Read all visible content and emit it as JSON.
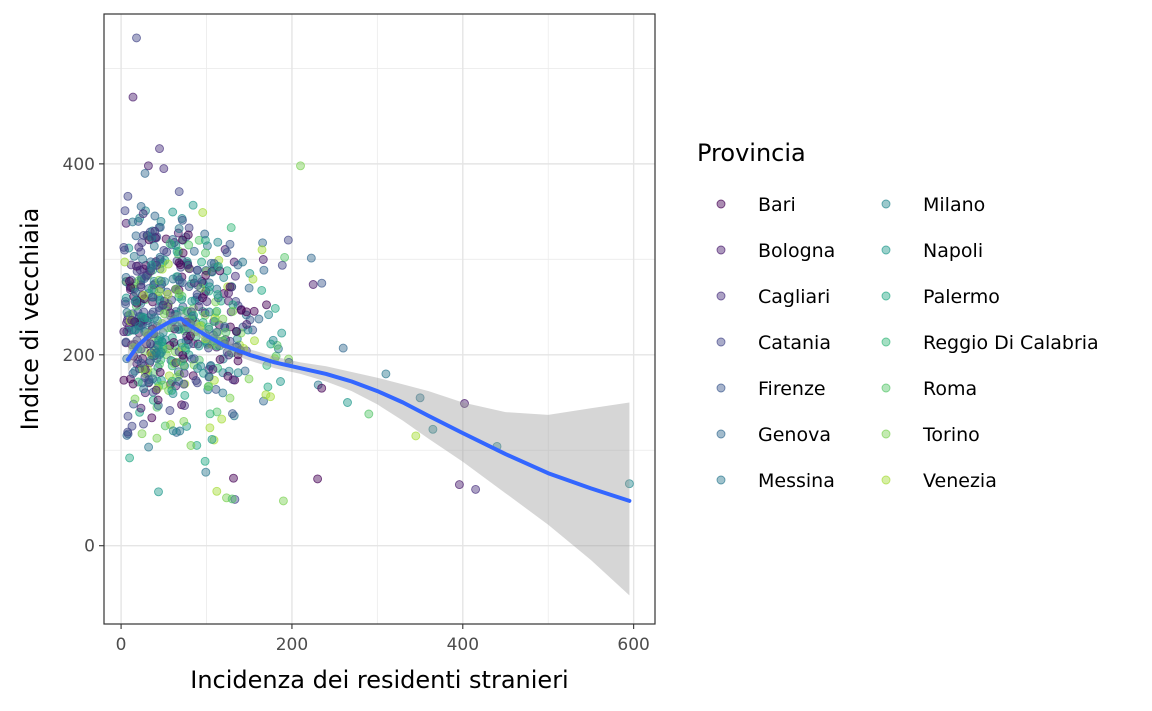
{
  "chart_data": {
    "type": "scatter",
    "xlabel": "Incidenza dei residenti stranieri",
    "ylabel": "Indice di vecchiaia",
    "xlim": [
      -20,
      625
    ],
    "ylim": [
      -82,
      557
    ],
    "x_ticks": [
      0,
      200,
      400,
      600
    ],
    "y_ticks": [
      0,
      200,
      400
    ],
    "grid": true,
    "legend": {
      "title": "Provincia",
      "placement": "right",
      "columns": 2,
      "entries": [
        {
          "name": "Bari",
          "color": "#440154"
        },
        {
          "name": "Bologna",
          "color": "#481A6C"
        },
        {
          "name": "Cagliari",
          "color": "#472F7D"
        },
        {
          "name": "Catania",
          "color": "#414487"
        },
        {
          "name": "Firenze",
          "color": "#39568C"
        },
        {
          "name": "Genova",
          "color": "#31688E"
        },
        {
          "name": "Messina",
          "color": "#2A788E"
        },
        {
          "name": "Milano",
          "color": "#23888E"
        },
        {
          "name": "Napoli",
          "color": "#1F988B"
        },
        {
          "name": "Palermo",
          "color": "#22A884"
        },
        {
          "name": "Reggio Di Calabria",
          "color": "#35B779"
        },
        {
          "name": "Roma",
          "color": "#54C568"
        },
        {
          "name": "Torino",
          "color": "#7AD151"
        },
        {
          "name": "Venezia",
          "color": "#A5DB36"
        }
      ]
    },
    "point_style": {
      "alpha": 0.45,
      "radius": 4
    },
    "highlighted_points": [
      {
        "x": 18,
        "y": 532,
        "series": "Catania"
      },
      {
        "x": 14,
        "y": 470,
        "series": "Bologna"
      },
      {
        "x": 45,
        "y": 416,
        "series": "Cagliari"
      },
      {
        "x": 32,
        "y": 398,
        "series": "Bologna"
      },
      {
        "x": 50,
        "y": 395,
        "series": "Cagliari"
      },
      {
        "x": 28,
        "y": 390,
        "series": "Genova"
      },
      {
        "x": 68,
        "y": 371,
        "series": "Catania"
      },
      {
        "x": 8,
        "y": 366,
        "series": "Catania"
      },
      {
        "x": 210,
        "y": 398,
        "series": "Torino"
      },
      {
        "x": 165,
        "y": 310,
        "series": "Venezia"
      },
      {
        "x": 235,
        "y": 275,
        "series": "Firenze"
      },
      {
        "x": 260,
        "y": 207,
        "series": "Genova"
      },
      {
        "x": 310,
        "y": 180,
        "series": "Messina"
      },
      {
        "x": 350,
        "y": 155,
        "series": "Messina"
      },
      {
        "x": 365,
        "y": 122,
        "series": "Milano"
      },
      {
        "x": 345,
        "y": 115,
        "series": "Venezia"
      },
      {
        "x": 402,
        "y": 149,
        "series": "Bologna"
      },
      {
        "x": 396,
        "y": 64,
        "series": "Bologna"
      },
      {
        "x": 415,
        "y": 59,
        "series": "Cagliari"
      },
      {
        "x": 595,
        "y": 65,
        "series": "Milano"
      },
      {
        "x": 230,
        "y": 70,
        "series": "Bari"
      },
      {
        "x": 112,
        "y": 57,
        "series": "Venezia"
      },
      {
        "x": 190,
        "y": 47,
        "series": "Torino"
      },
      {
        "x": 130,
        "y": 49,
        "series": "Roma"
      },
      {
        "x": 10,
        "y": 92,
        "series": "Palermo"
      },
      {
        "x": 265,
        "y": 150,
        "series": "Napoli"
      },
      {
        "x": 290,
        "y": 138,
        "series": "Roma"
      },
      {
        "x": 440,
        "y": 104,
        "series": "Milano"
      }
    ],
    "cloud": {
      "n": 650,
      "x_mode": 55,
      "x_range": [
        3,
        330
      ],
      "y_center": 210,
      "y_spread": 55
    },
    "smooth": {
      "color": "#3366FF",
      "ribbon_color": "#999999",
      "x": [
        8,
        20,
        40,
        60,
        70,
        80,
        100,
        120,
        150,
        180,
        210,
        240,
        270,
        300,
        330,
        360,
        400,
        450,
        500,
        550,
        595
      ],
      "y": [
        195,
        210,
        226,
        236,
        238,
        231,
        220,
        210,
        200,
        192,
        186,
        180,
        172,
        162,
        150,
        136,
        118,
        96,
        76,
        60,
        47
      ],
      "lower": [
        182,
        200,
        219,
        228,
        230,
        224,
        214,
        204,
        194,
        186,
        180,
        172,
        162,
        148,
        131,
        112,
        88,
        55,
        22,
        -15,
        -52
      ],
      "upper": [
        212,
        221,
        233,
        243,
        246,
        238,
        226,
        216,
        206,
        198,
        192,
        188,
        182,
        176,
        169,
        162,
        150,
        140,
        137,
        144,
        150
      ]
    }
  }
}
